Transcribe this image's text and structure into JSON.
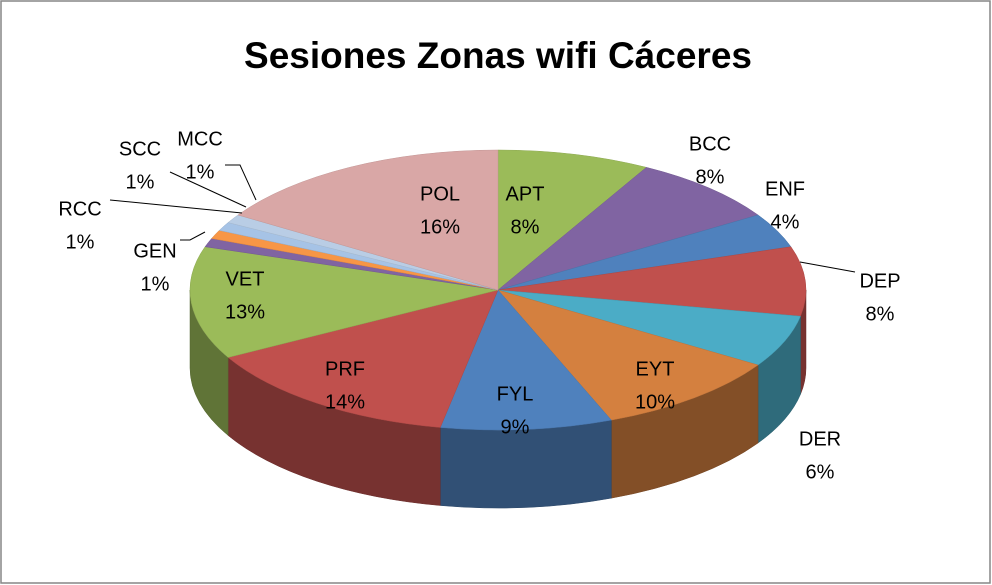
{
  "chart_data": {
    "type": "pie3d",
    "title": "Sesiones Zonas wifi Cáceres",
    "categories": [
      "APT",
      "BCC",
      "ENF",
      "DEP",
      "DER",
      "EYT",
      "FYL",
      "PRF",
      "VET",
      "GEN",
      "RCC",
      "SCC",
      "MCC",
      "POL"
    ],
    "values": [
      8,
      8,
      4,
      8,
      6,
      10,
      9,
      14,
      13,
      1,
      1,
      1,
      1,
      16
    ],
    "value_labels": [
      "8%",
      "8%",
      "4%",
      "8%",
      "6%",
      "10%",
      "9%",
      "14%",
      "13%",
      "1%",
      "1%",
      "1%",
      "1%",
      "16%"
    ],
    "colors": [
      "#9bbb59",
      "#8064a2",
      "#4f81bd",
      "#c0504d",
      "#4bacc6",
      "#d4803f",
      "#4f81bd",
      "#c0504d",
      "#9bbb59",
      "#8064a2",
      "#f79646",
      "#a6c3e6",
      "#b9cde5",
      "#d9a7a6"
    ]
  }
}
